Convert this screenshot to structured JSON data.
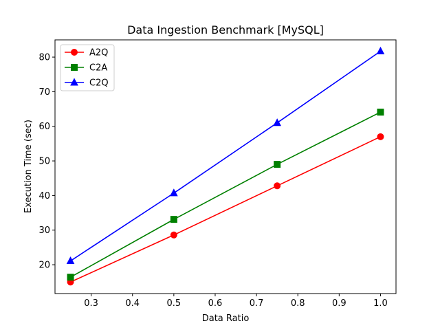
{
  "chart_data": {
    "type": "line",
    "title": "Data Ingestion Benchmark [MySQL]",
    "xlabel": "Data Ratio",
    "ylabel": "Execution Time (sec)",
    "x": [
      0.25,
      0.5,
      0.75,
      1.0
    ],
    "xlim": [
      0.2125,
      1.0375
    ],
    "ylim": [
      11.67,
      84.98
    ],
    "xticks": [
      0.3,
      0.4,
      0.5,
      0.6,
      0.7,
      0.8,
      0.9,
      1.0
    ],
    "xtick_labels": [
      "0.3",
      "0.4",
      "0.5",
      "0.6",
      "0.7",
      "0.8",
      "0.9",
      "1.0"
    ],
    "yticks": [
      20,
      30,
      40,
      50,
      60,
      70,
      80
    ],
    "ytick_labels": [
      "20",
      "30",
      "40",
      "50",
      "60",
      "70",
      "80"
    ],
    "grid": false,
    "legend_position": "top-left",
    "series": [
      {
        "name": "A2Q",
        "values": [
          15.0,
          28.6,
          42.8,
          57.0
        ],
        "color": "#ff0000",
        "marker": "circle"
      },
      {
        "name": "C2A",
        "values": [
          16.4,
          33.1,
          49.0,
          64.1
        ],
        "color": "#008000",
        "marker": "square"
      },
      {
        "name": "C2Q",
        "values": [
          21.1,
          40.7,
          61.0,
          81.7
        ],
        "color": "#0000ff",
        "marker": "triangle"
      }
    ]
  }
}
